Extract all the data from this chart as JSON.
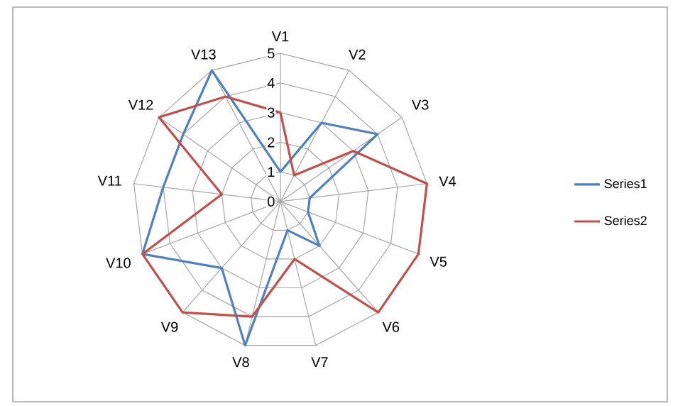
{
  "chart_data": {
    "type": "radar",
    "categories": [
      "V1",
      "V2",
      "V3",
      "V4",
      "V5",
      "V6",
      "V7",
      "V8",
      "V9",
      "V10",
      "V11",
      "V12",
      "V13"
    ],
    "series": [
      {
        "name": "Series1",
        "color": "#4f81bd",
        "values": [
          1,
          3,
          4,
          1,
          1,
          2,
          1,
          5,
          3,
          5,
          4,
          4,
          5
        ]
      },
      {
        "name": "Series2",
        "color": "#c0504d",
        "values": [
          3,
          1,
          3,
          5,
          5,
          5,
          2,
          4,
          5,
          5,
          2,
          5,
          4
        ]
      }
    ],
    "ylim": [
      0,
      5
    ],
    "yticks": [
      0,
      1,
      2,
      3,
      4,
      5
    ],
    "grid": true,
    "legend": "right",
    "marker": "none",
    "line_style": "solid"
  }
}
